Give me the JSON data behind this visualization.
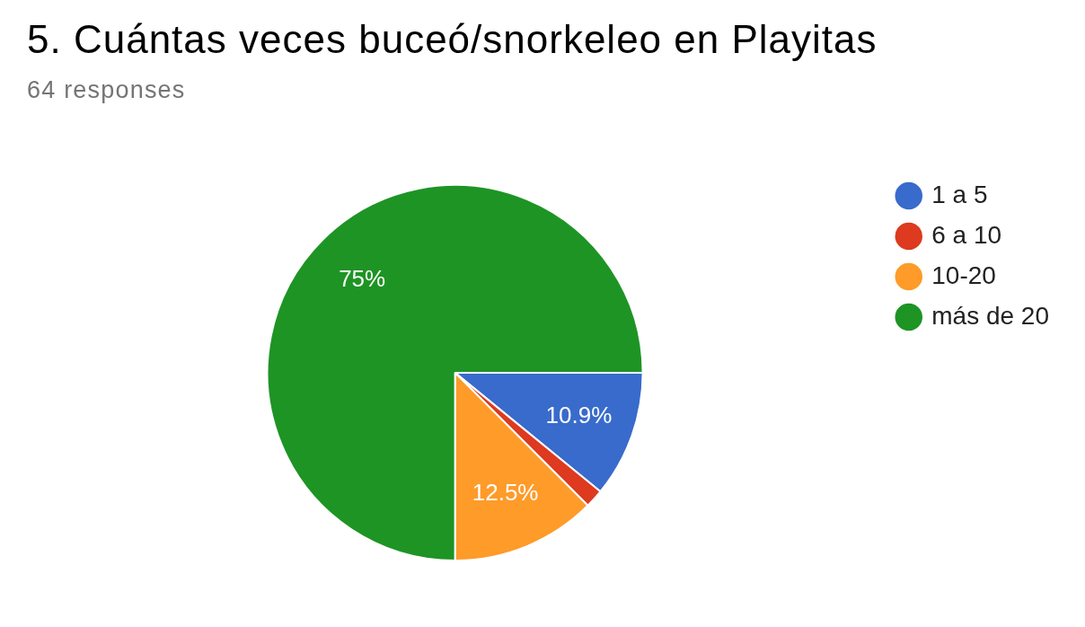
{
  "chart_data": {
    "type": "pie",
    "title": "5. Cuántas veces buceó/snorkeleo en Playitas",
    "subtitle": "64 responses",
    "categories": [
      "1 a 5",
      "6 a 10",
      "10-20",
      "más de 20"
    ],
    "values": [
      10.9,
      1.6,
      12.5,
      75
    ],
    "colors": [
      "#386bcb",
      "#dd3a1f",
      "#fe9b29",
      "#1e9425"
    ],
    "value_labels": [
      "10.9%",
      null,
      "12.5%",
      "75%"
    ],
    "legend": "top right"
  }
}
